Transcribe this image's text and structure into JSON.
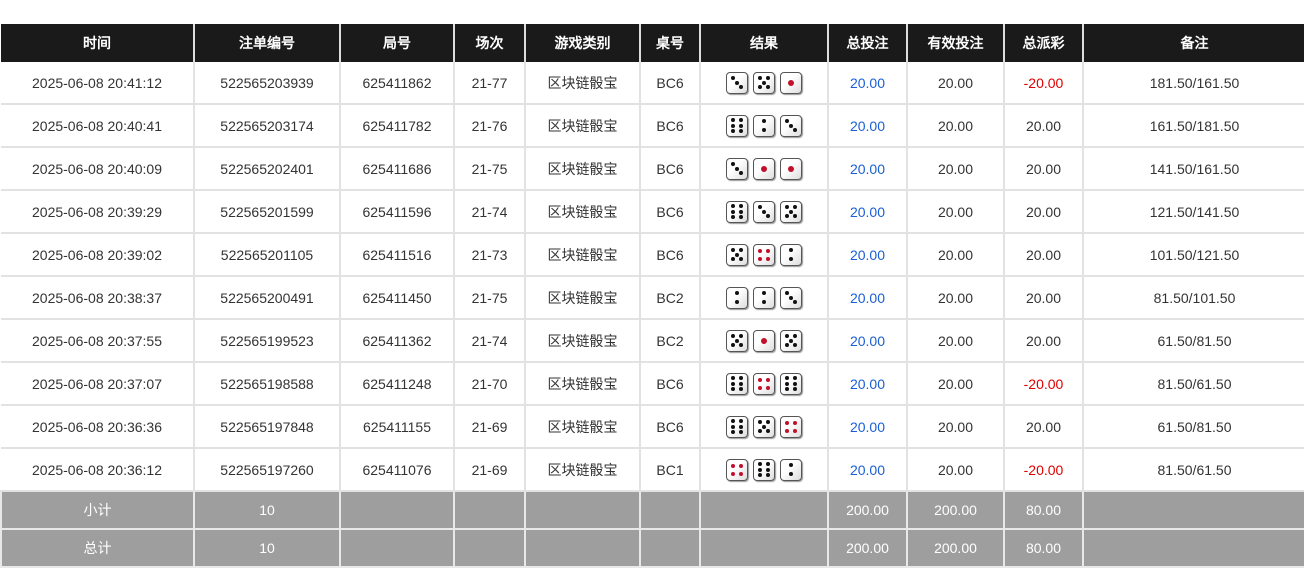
{
  "headers": [
    "时间",
    "注单编号",
    "局号",
    "场次",
    "游戏类别",
    "桌号",
    "结果",
    "总投注",
    "有效投注",
    "总派彩",
    "备注"
  ],
  "colors": {
    "header_bg": "#1a1a1a",
    "bet_blue": "#1a5fd6",
    "loss_red": "#e00000",
    "footer_bg": "#9e9e9e"
  },
  "rows": [
    {
      "time": "2025-06-08 20:41:12",
      "bet_id": "522565203939",
      "round": "625411862",
      "session": "21-77",
      "game": "区块链骰宝",
      "table": "BC6",
      "dice": [
        3,
        5,
        1
      ],
      "total_bet": "20.00",
      "valid_bet": "20.00",
      "payout": "-20.00",
      "note": "181.50/161.50"
    },
    {
      "time": "2025-06-08 20:40:41",
      "bet_id": "522565203174",
      "round": "625411782",
      "session": "21-76",
      "game": "区块链骰宝",
      "table": "BC6",
      "dice": [
        6,
        2,
        3
      ],
      "total_bet": "20.00",
      "valid_bet": "20.00",
      "payout": "20.00",
      "note": "161.50/181.50"
    },
    {
      "time": "2025-06-08 20:40:09",
      "bet_id": "522565202401",
      "round": "625411686",
      "session": "21-75",
      "game": "区块链骰宝",
      "table": "BC6",
      "dice": [
        3,
        1,
        1
      ],
      "total_bet": "20.00",
      "valid_bet": "20.00",
      "payout": "20.00",
      "note": "141.50/161.50"
    },
    {
      "time": "2025-06-08 20:39:29",
      "bet_id": "522565201599",
      "round": "625411596",
      "session": "21-74",
      "game": "区块链骰宝",
      "table": "BC6",
      "dice": [
        6,
        3,
        5
      ],
      "total_bet": "20.00",
      "valid_bet": "20.00",
      "payout": "20.00",
      "note": "121.50/141.50"
    },
    {
      "time": "2025-06-08 20:39:02",
      "bet_id": "522565201105",
      "round": "625411516",
      "session": "21-73",
      "game": "区块链骰宝",
      "table": "BC6",
      "dice": [
        5,
        4,
        2
      ],
      "total_bet": "20.00",
      "valid_bet": "20.00",
      "payout": "20.00",
      "note": "101.50/121.50"
    },
    {
      "time": "2025-06-08 20:38:37",
      "bet_id": "522565200491",
      "round": "625411450",
      "session": "21-75",
      "game": "区块链骰宝",
      "table": "BC2",
      "dice": [
        2,
        2,
        3
      ],
      "total_bet": "20.00",
      "valid_bet": "20.00",
      "payout": "20.00",
      "note": "81.50/101.50"
    },
    {
      "time": "2025-06-08 20:37:55",
      "bet_id": "522565199523",
      "round": "625411362",
      "session": "21-74",
      "game": "区块链骰宝",
      "table": "BC2",
      "dice": [
        5,
        1,
        5
      ],
      "total_bet": "20.00",
      "valid_bet": "20.00",
      "payout": "20.00",
      "note": "61.50/81.50"
    },
    {
      "time": "2025-06-08 20:37:07",
      "bet_id": "522565198588",
      "round": "625411248",
      "session": "21-70",
      "game": "区块链骰宝",
      "table": "BC6",
      "dice": [
        6,
        4,
        6
      ],
      "total_bet": "20.00",
      "valid_bet": "20.00",
      "payout": "-20.00",
      "note": "81.50/61.50"
    },
    {
      "time": "2025-06-08 20:36:36",
      "bet_id": "522565197848",
      "round": "625411155",
      "session": "21-69",
      "game": "区块链骰宝",
      "table": "BC6",
      "dice": [
        6,
        5,
        4
      ],
      "total_bet": "20.00",
      "valid_bet": "20.00",
      "payout": "20.00",
      "note": "61.50/81.50"
    },
    {
      "time": "2025-06-08 20:36:12",
      "bet_id": "522565197260",
      "round": "625411076",
      "session": "21-69",
      "game": "区块链骰宝",
      "table": "BC1",
      "dice": [
        4,
        6,
        2
      ],
      "total_bet": "20.00",
      "valid_bet": "20.00",
      "payout": "-20.00",
      "note": "81.50/61.50"
    }
  ],
  "subtotal": {
    "label": "小计",
    "count": "10",
    "total_bet": "200.00",
    "valid_bet": "200.00",
    "payout": "80.00"
  },
  "total": {
    "label": "总计",
    "count": "10",
    "total_bet": "200.00",
    "valid_bet": "200.00",
    "payout": "80.00"
  }
}
